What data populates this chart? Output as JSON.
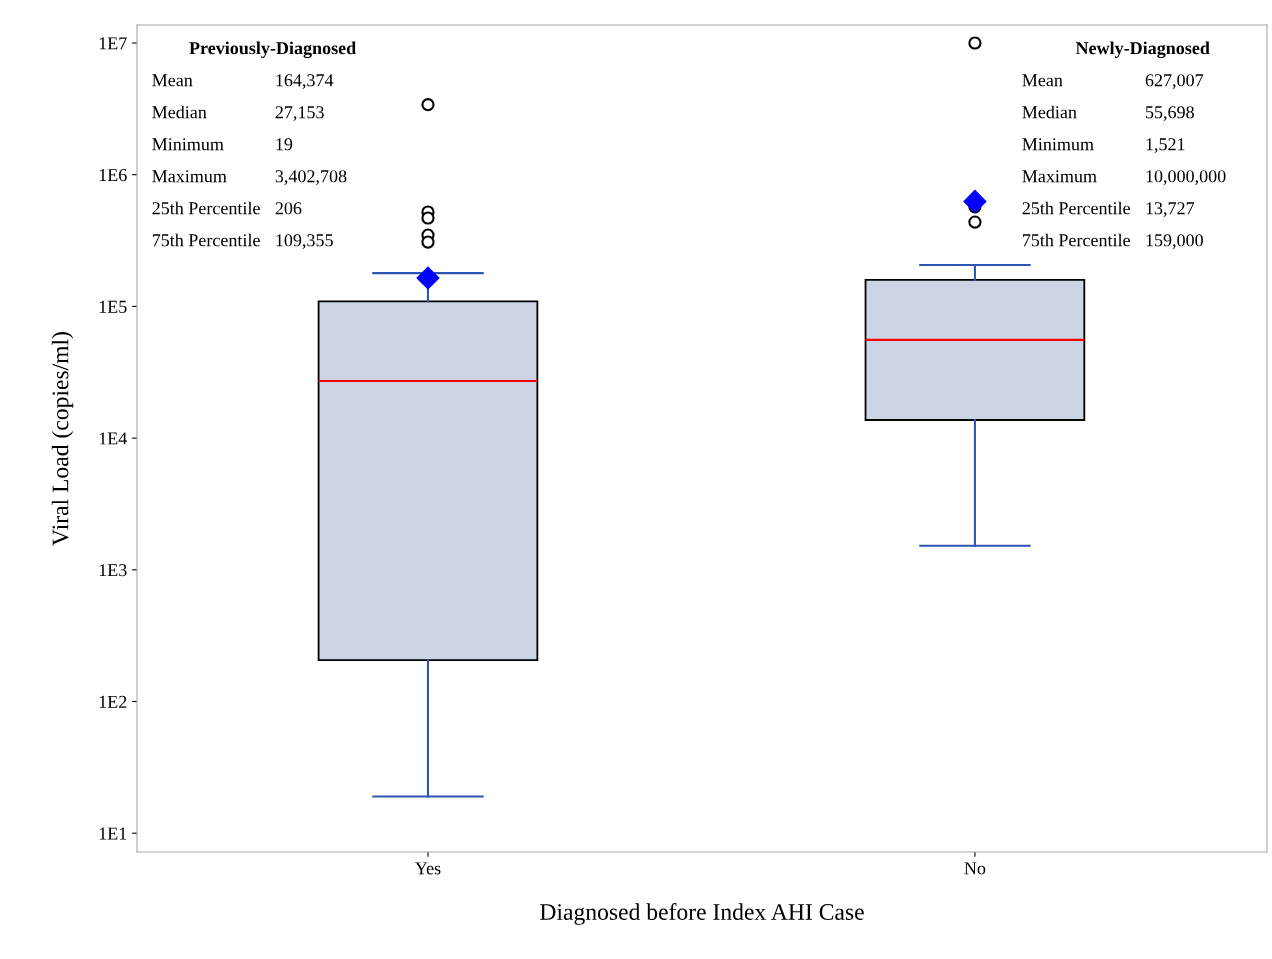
{
  "chart_data": {
    "type": "box",
    "xlabel": "Diagnosed before Index AHI Case",
    "ylabel": "Viral Load (copies/ml)",
    "categories": [
      "Yes",
      "No"
    ],
    "boxes": [
      {
        "low": 19,
        "q1": 206,
        "median": 27153,
        "q3": 109355,
        "high": 179000,
        "mean": 164374,
        "outliers": [
          3402708,
          521000,
          469000,
          348000,
          308000
        ]
      },
      {
        "low": 1521,
        "q1": 13727,
        "median": 55698,
        "q3": 159000,
        "high": 206000,
        "mean": 627007,
        "outliers": [
          10000000,
          570000,
          437000
        ]
      }
    ],
    "color": "#cbd5e4",
    "log": true,
    "grid": false,
    "ylim": [
      7.2,
      13700000
    ],
    "yticks": [
      {
        "value": 10,
        "label": "1E1"
      },
      {
        "value": 100,
        "label": "1E2"
      },
      {
        "value": 1000,
        "label": "1E3"
      },
      {
        "value": 10000,
        "label": "1E4"
      },
      {
        "value": 100000,
        "label": "1E5"
      },
      {
        "value": 1000000,
        "label": "1E6"
      },
      {
        "value": 10000000,
        "label": "1E7"
      }
    ],
    "annotations": [
      "Previously-Diagnosed",
      "Mean",
      "164,374",
      "Median",
      "27,153",
      "Minimum",
      "19",
      "Maximum",
      "3,402,708",
      "25th Percentile",
      "206",
      "75th Percentile",
      "109,355",
      "Newly-Diagnosed",
      "Mean",
      "627,007",
      "Median",
      "55,698",
      "Minimum",
      "1,521",
      "Maximum",
      "10,000,000",
      "25th Percentile",
      "13,727",
      "75th Percentile",
      "159,000"
    ]
  }
}
